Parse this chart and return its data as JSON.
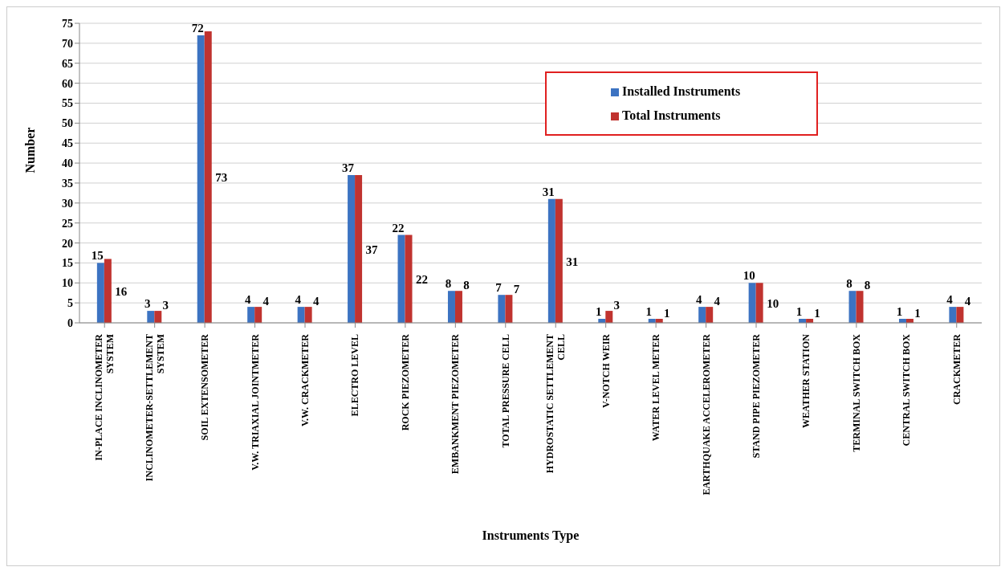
{
  "chart_data": {
    "type": "bar",
    "xlabel": "Instruments Type",
    "ylabel": "Number",
    "categories": [
      "IN-PLACE INCLINOMETER SYSTEM",
      "INCLINOMETER-SETTLEMENT SYSTEM",
      "SOIL EXTENSOMETER",
      "V.W. TRIAXIAL  JOINTMETER",
      "V.W. CRACKMETER",
      "ELECTRO LEVEL",
      "ROCK PIEZOMETER",
      "EMBANKMENT PIEZOMETER",
      "TOTAL PRESSURE CELL",
      "HYDROSTATIC SETTLEMENT CELL",
      "V-NOTCH  WEIR",
      "WATER LEVEL METER",
      "EARTHQUAKE ACCELEROMETER",
      "STAND PIPE PIEZOMETER",
      "WEATHER STATION",
      "TERMINAL SWITCH BOX",
      "CENTRAL SWITCH BOX",
      "CRACKMETER"
    ],
    "series": [
      {
        "name": "Installed Instruments",
        "color": "#3c73c2",
        "values": [
          15,
          3,
          72,
          4,
          4,
          37,
          22,
          8,
          7,
          31,
          1,
          1,
          4,
          10,
          1,
          8,
          1,
          4
        ]
      },
      {
        "name": "Total Instruments",
        "color": "#c0332f",
        "values": [
          16,
          3,
          73,
          4,
          4,
          37,
          22,
          8,
          7,
          31,
          3,
          1,
          4,
          10,
          1,
          8,
          1,
          4
        ]
      }
    ],
    "ylim": [
      0,
      75
    ],
    "yticks": [
      0,
      5,
      10,
      15,
      20,
      25,
      30,
      35,
      40,
      45,
      50,
      55,
      60,
      65,
      70,
      75
    ],
    "grid": "y",
    "legend": "top right",
    "data_labels": true
  }
}
